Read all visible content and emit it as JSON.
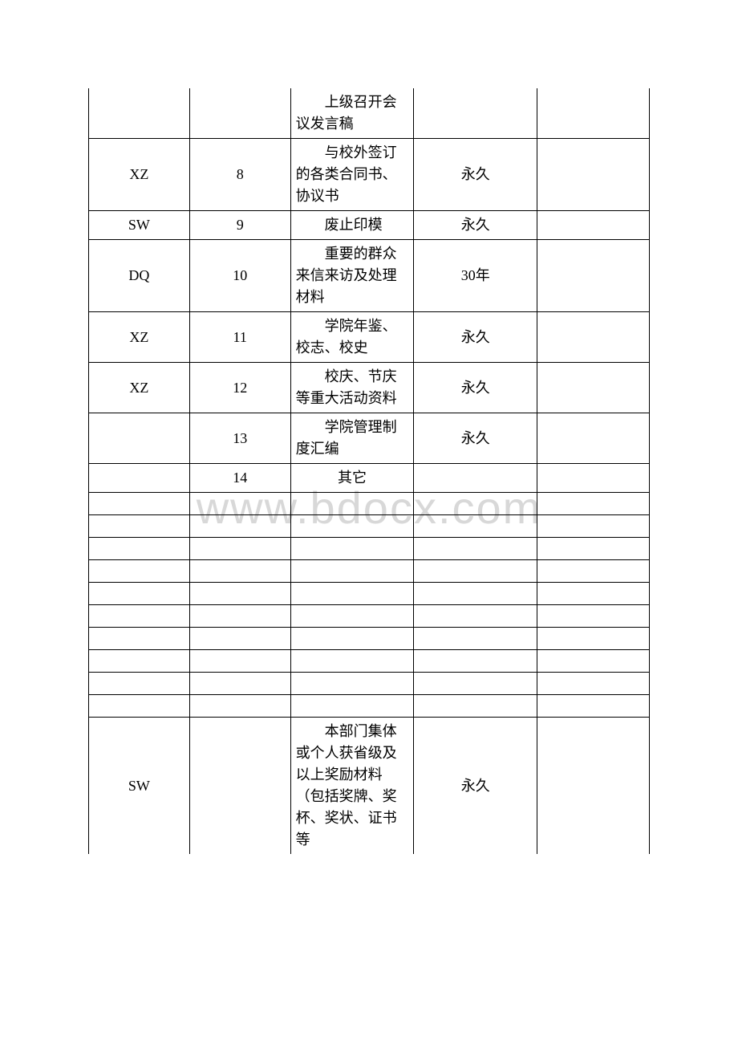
{
  "watermark": "www.bdocx.com",
  "table": {
    "columns": [
      "col1",
      "col2",
      "col3",
      "col4",
      "col5"
    ],
    "col_widths_pct": [
      18,
      18,
      22,
      22,
      20
    ],
    "border_color": "#000000",
    "background_color": "#ffffff",
    "font_size": 18,
    "text_color": "#000000",
    "rows": [
      {
        "c1": "",
        "c2": "",
        "c3": "上级召开会议发言稿",
        "c4": "",
        "c5": "",
        "first": true
      },
      {
        "c1": "XZ",
        "c2": "8",
        "c3": "与校外签订的各类合同书、协议书",
        "c4": "永久",
        "c5": ""
      },
      {
        "c1": "SW",
        "c2": "9",
        "c3": "废止印模",
        "c4": "永久",
        "c5": ""
      },
      {
        "c1": "DQ",
        "c2": "10",
        "c3": "重要的群众来信来访及处理材料",
        "c4": "30年",
        "c5": ""
      },
      {
        "c1": "XZ",
        "c2": "11",
        "c3": "学院年鉴、校志、校史",
        "c4": "永久",
        "c5": ""
      },
      {
        "c1": "XZ",
        "c2": "12",
        "c3": "校庆、节庆等重大活动资料",
        "c4": "永久",
        "c5": ""
      },
      {
        "c1": "",
        "c2": "13",
        "c3": "学院管理制度汇编",
        "c4": "永久",
        "c5": ""
      },
      {
        "c1": "",
        "c2": "14",
        "c3": "其它",
        "c4": "",
        "c5": "",
        "c3_center": true
      },
      {
        "empty": true
      },
      {
        "empty": true
      },
      {
        "empty": true
      },
      {
        "empty": true
      },
      {
        "empty": true
      },
      {
        "empty": true
      },
      {
        "empty": true
      },
      {
        "empty": true
      },
      {
        "empty": true
      },
      {
        "empty": true
      },
      {
        "c1": "SW",
        "c2": "",
        "c3": "本部门集体或个人获省级及以上奖励材料（包括奖牌、奖杯、奖状、证书等",
        "c4": "永久",
        "c5": "",
        "last": true
      }
    ]
  }
}
